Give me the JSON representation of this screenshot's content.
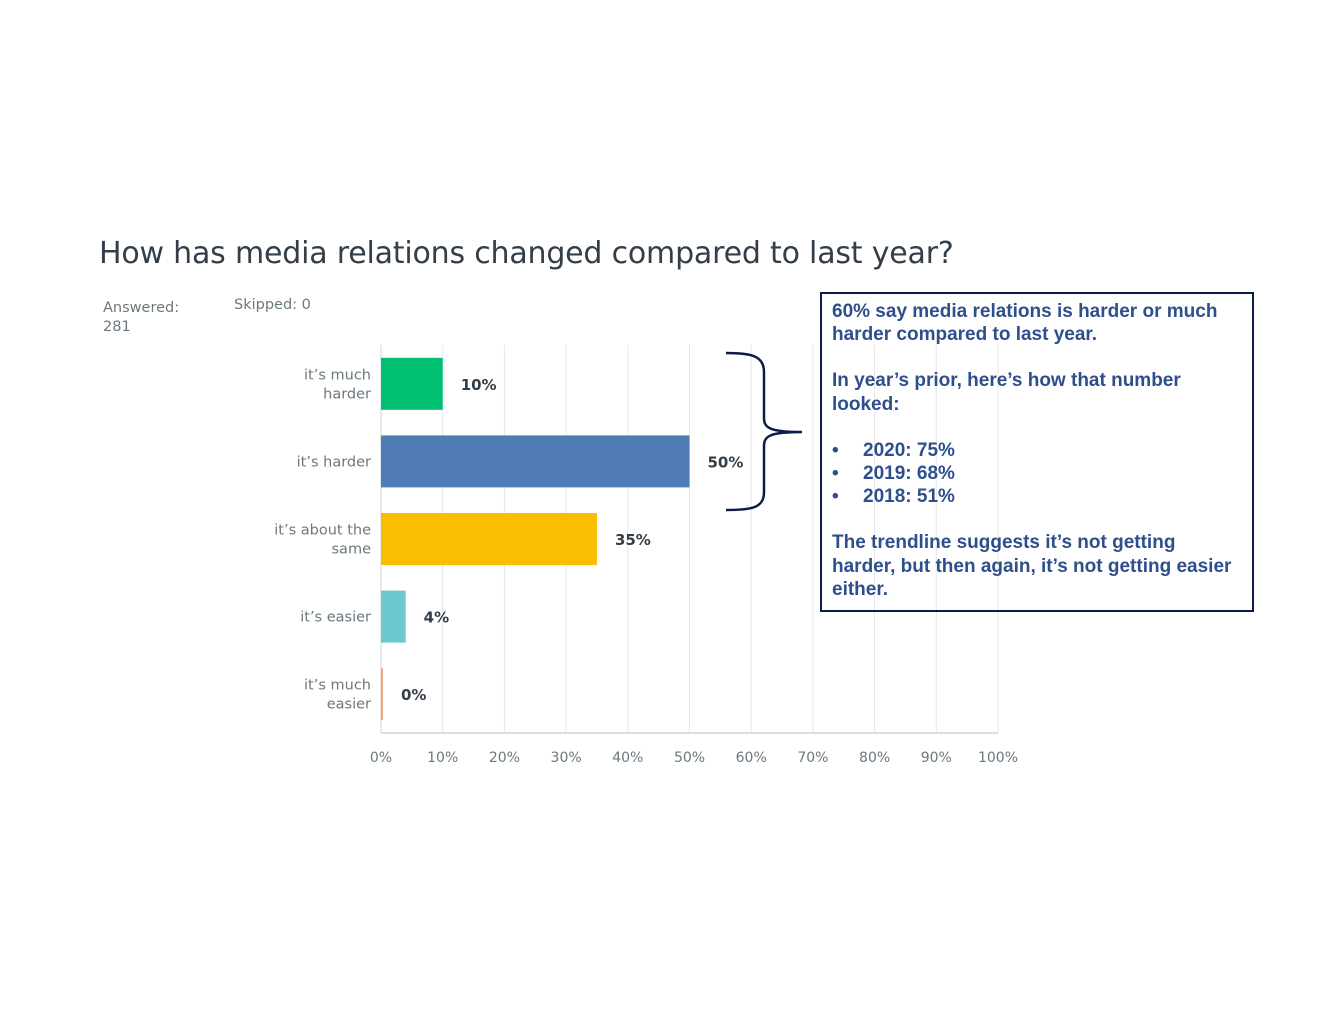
{
  "question": "How has media relations changed compared to last year?",
  "answered_label": "Answered:",
  "answered_value": "281",
  "skipped_text": "Skipped: 0",
  "chart_data": {
    "type": "bar",
    "orientation": "horizontal",
    "title": "How has media relations changed compared to last year?",
    "categories": [
      [
        "it’s much",
        "harder"
      ],
      [
        "it’s harder"
      ],
      [
        "it’s about the",
        "same"
      ],
      [
        "it’s easier"
      ],
      [
        "it’s much",
        "easier"
      ]
    ],
    "values": [
      10,
      50,
      35,
      4,
      0
    ],
    "data_labels": [
      "10%",
      "50%",
      "35%",
      "4%",
      "0%"
    ],
    "colors": [
      "#00bf6f",
      "#507cb6",
      "#f9be00",
      "#6bc8cd",
      "#f0a77e"
    ],
    "xlim": [
      0,
      100
    ],
    "xticks": [
      "0%",
      "10%",
      "20%",
      "30%",
      "40%",
      "50%",
      "60%",
      "70%",
      "80%",
      "90%",
      "100%"
    ],
    "grid": true
  },
  "callout": {
    "headline": "60% say media relations is harder or much harder compared to last year.",
    "intro": "In year’s prior, here’s how that number looked:",
    "items": [
      "2020: 75%",
      "2019: 68%",
      "2018: 51%"
    ],
    "conclusion": "The trendline suggests it’s not getting harder, but then again, it’s not getting easier either.",
    "border_color": "#0d1b4b",
    "text_color": "#2e4f8c"
  }
}
